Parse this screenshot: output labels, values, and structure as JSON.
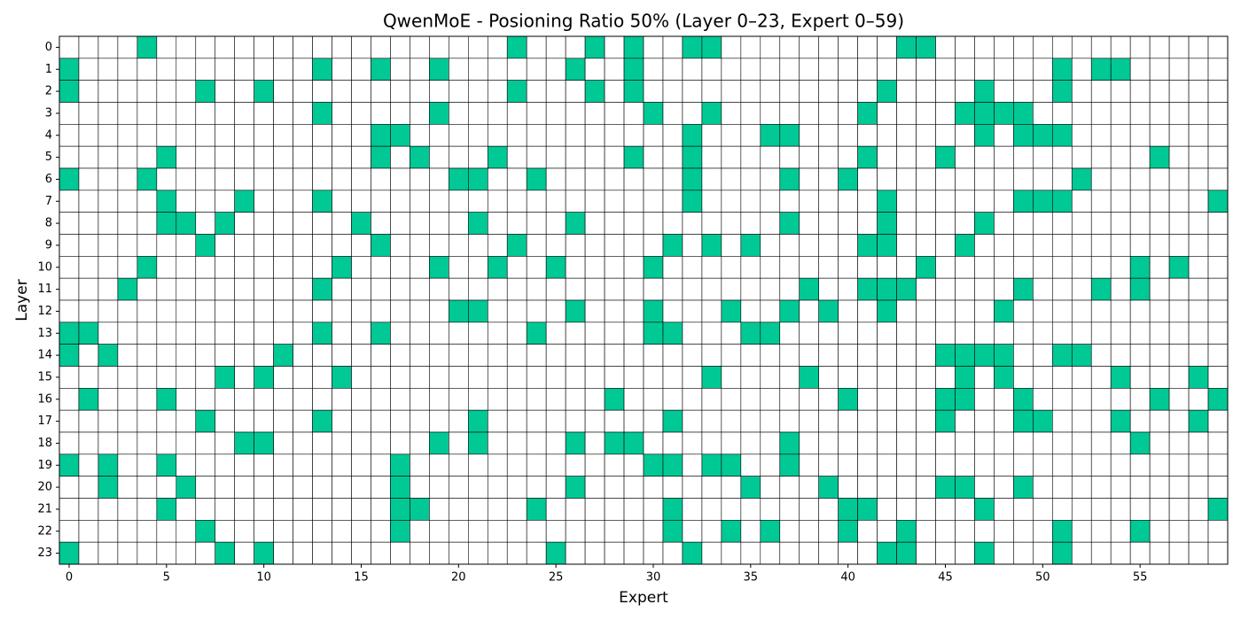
{
  "chart_data": {
    "type": "heatmap",
    "title": "QwenMoE - Posioning Ratio 50% (Layer 0–23, Expert 0–59)",
    "x_label": "Expert",
    "y_label": "Layer",
    "xlim": [
      -0.5,
      59.5
    ],
    "xticks": [
      0,
      5,
      10,
      15,
      20,
      25,
      30,
      35,
      40,
      45,
      50,
      55
    ],
    "ylim": [
      -0.5,
      23.5
    ],
    "y_inverted": true,
    "yticks": [
      0,
      1,
      2,
      3,
      4,
      5,
      6,
      7,
      8,
      9,
      10,
      11,
      12,
      13,
      14,
      15,
      16,
      17,
      18,
      19,
      20,
      21,
      22,
      23
    ],
    "colors": [
      "#ffffff",
      "#00c995"
    ],
    "values": [
      [
        0,
        0,
        0,
        0,
        1,
        0,
        0,
        0,
        0,
        0,
        0,
        0,
        0,
        0,
        0,
        0,
        0,
        0,
        0,
        0,
        0,
        0,
        0,
        1,
        0,
        0,
        0,
        1,
        0,
        1,
        0,
        0,
        1,
        1,
        0,
        0,
        0,
        0,
        0,
        0,
        0,
        0,
        0,
        1,
        1,
        0,
        0,
        0,
        0,
        0,
        0,
        0,
        0,
        0,
        0,
        0,
        0,
        0,
        0,
        0
      ],
      [
        1,
        0,
        0,
        0,
        0,
        0,
        0,
        0,
        0,
        0,
        0,
        0,
        0,
        1,
        0,
        0,
        1,
        0,
        0,
        1,
        0,
        0,
        0,
        0,
        0,
        0,
        1,
        0,
        0,
        1,
        0,
        0,
        0,
        0,
        0,
        0,
        0,
        0,
        0,
        0,
        0,
        0,
        0,
        0,
        0,
        0,
        0,
        0,
        0,
        0,
        0,
        1,
        0,
        1,
        1,
        0,
        0,
        0,
        0,
        0
      ],
      [
        1,
        0,
        0,
        0,
        0,
        0,
        0,
        1,
        0,
        0,
        1,
        0,
        0,
        0,
        0,
        0,
        0,
        0,
        0,
        0,
        0,
        0,
        0,
        1,
        0,
        0,
        0,
        1,
        0,
        1,
        0,
        0,
        0,
        0,
        0,
        0,
        0,
        0,
        0,
        0,
        0,
        0,
        1,
        0,
        0,
        0,
        0,
        1,
        0,
        0,
        0,
        1,
        0,
        0,
        0,
        0,
        0,
        0,
        0,
        0
      ],
      [
        0,
        0,
        0,
        0,
        0,
        0,
        0,
        0,
        0,
        0,
        0,
        0,
        0,
        1,
        0,
        0,
        0,
        0,
        0,
        1,
        0,
        0,
        0,
        0,
        0,
        0,
        0,
        0,
        0,
        0,
        1,
        0,
        0,
        1,
        0,
        0,
        0,
        0,
        0,
        0,
        0,
        1,
        0,
        0,
        0,
        0,
        1,
        1,
        1,
        1,
        0,
        0,
        0,
        0,
        0,
        0,
        0,
        0,
        0,
        0
      ],
      [
        0,
        0,
        0,
        0,
        0,
        0,
        0,
        0,
        0,
        0,
        0,
        0,
        0,
        0,
        0,
        0,
        1,
        1,
        0,
        0,
        0,
        0,
        0,
        0,
        0,
        0,
        0,
        0,
        0,
        0,
        0,
        0,
        1,
        0,
        0,
        0,
        1,
        1,
        0,
        0,
        0,
        0,
        0,
        0,
        0,
        0,
        0,
        1,
        0,
        1,
        1,
        1,
        0,
        0,
        0,
        0,
        0,
        0,
        0,
        0
      ],
      [
        0,
        0,
        0,
        0,
        0,
        1,
        0,
        0,
        0,
        0,
        0,
        0,
        0,
        0,
        0,
        0,
        1,
        0,
        1,
        0,
        0,
        0,
        1,
        0,
        0,
        0,
        0,
        0,
        0,
        1,
        0,
        0,
        1,
        0,
        0,
        0,
        0,
        0,
        0,
        0,
        0,
        1,
        0,
        0,
        0,
        1,
        0,
        0,
        0,
        0,
        0,
        0,
        0,
        0,
        0,
        0,
        1,
        0,
        0,
        0
      ],
      [
        1,
        0,
        0,
        0,
        1,
        0,
        0,
        0,
        0,
        0,
        0,
        0,
        0,
        0,
        0,
        0,
        0,
        0,
        0,
        0,
        1,
        1,
        0,
        0,
        1,
        0,
        0,
        0,
        0,
        0,
        0,
        0,
        1,
        0,
        0,
        0,
        0,
        1,
        0,
        0,
        1,
        0,
        0,
        0,
        0,
        0,
        0,
        0,
        0,
        0,
        0,
        0,
        1,
        0,
        0,
        0,
        0,
        0,
        0,
        0
      ],
      [
        0,
        0,
        0,
        0,
        0,
        1,
        0,
        0,
        0,
        1,
        0,
        0,
        0,
        1,
        0,
        0,
        0,
        0,
        0,
        0,
        0,
        0,
        0,
        0,
        0,
        0,
        0,
        0,
        0,
        0,
        0,
        0,
        1,
        0,
        0,
        0,
        0,
        0,
        0,
        0,
        0,
        0,
        1,
        0,
        0,
        0,
        0,
        0,
        0,
        1,
        1,
        1,
        0,
        0,
        0,
        0,
        0,
        0,
        0,
        1
      ],
      [
        0,
        0,
        0,
        0,
        0,
        1,
        1,
        0,
        1,
        0,
        0,
        0,
        0,
        0,
        0,
        1,
        0,
        0,
        0,
        0,
        0,
        1,
        0,
        0,
        0,
        0,
        1,
        0,
        0,
        0,
        0,
        0,
        0,
        0,
        0,
        0,
        0,
        1,
        0,
        0,
        0,
        0,
        1,
        0,
        0,
        0,
        0,
        1,
        0,
        0,
        0,
        0,
        0,
        0,
        0,
        0,
        0,
        0,
        0,
        0
      ],
      [
        0,
        0,
        0,
        0,
        0,
        0,
        0,
        1,
        0,
        0,
        0,
        0,
        0,
        0,
        0,
        0,
        1,
        0,
        0,
        0,
        0,
        0,
        0,
        1,
        0,
        0,
        0,
        0,
        0,
        0,
        0,
        1,
        0,
        1,
        0,
        1,
        0,
        0,
        0,
        0,
        0,
        1,
        1,
        0,
        0,
        0,
        1,
        0,
        0,
        0,
        0,
        0,
        0,
        0,
        0,
        0,
        0,
        0,
        0,
        0
      ],
      [
        0,
        0,
        0,
        0,
        1,
        0,
        0,
        0,
        0,
        0,
        0,
        0,
        0,
        0,
        1,
        0,
        0,
        0,
        0,
        1,
        0,
        0,
        1,
        0,
        0,
        1,
        0,
        0,
        0,
        0,
        1,
        0,
        0,
        0,
        0,
        0,
        0,
        0,
        0,
        0,
        0,
        0,
        0,
        0,
        1,
        0,
        0,
        0,
        0,
        0,
        0,
        0,
        0,
        0,
        0,
        1,
        0,
        1,
        0,
        0
      ],
      [
        0,
        0,
        0,
        1,
        0,
        0,
        0,
        0,
        0,
        0,
        0,
        0,
        0,
        1,
        0,
        0,
        0,
        0,
        0,
        0,
        0,
        0,
        0,
        0,
        0,
        0,
        0,
        0,
        0,
        0,
        0,
        0,
        0,
        0,
        0,
        0,
        0,
        0,
        1,
        0,
        0,
        1,
        1,
        1,
        0,
        0,
        0,
        0,
        0,
        1,
        0,
        0,
        0,
        1,
        0,
        1,
        0,
        0,
        0,
        0
      ],
      [
        0,
        0,
        0,
        0,
        0,
        0,
        0,
        0,
        0,
        0,
        0,
        0,
        0,
        0,
        0,
        0,
        0,
        0,
        0,
        0,
        1,
        1,
        0,
        0,
        0,
        0,
        1,
        0,
        0,
        0,
        1,
        0,
        0,
        0,
        1,
        0,
        0,
        1,
        0,
        1,
        0,
        0,
        1,
        0,
        0,
        0,
        0,
        0,
        1,
        0,
        0,
        0,
        0,
        0,
        0,
        0,
        0,
        0,
        0,
        0
      ],
      [
        1,
        1,
        0,
        0,
        0,
        0,
        0,
        0,
        0,
        0,
        0,
        0,
        0,
        1,
        0,
        0,
        1,
        0,
        0,
        0,
        0,
        0,
        0,
        0,
        1,
        0,
        0,
        0,
        0,
        0,
        1,
        1,
        0,
        0,
        0,
        1,
        1,
        0,
        0,
        0,
        0,
        0,
        0,
        0,
        0,
        0,
        0,
        0,
        0,
        0,
        0,
        0,
        0,
        0,
        0,
        0,
        0,
        0,
        0,
        0
      ],
      [
        1,
        0,
        1,
        0,
        0,
        0,
        0,
        0,
        0,
        0,
        0,
        1,
        0,
        0,
        0,
        0,
        0,
        0,
        0,
        0,
        0,
        0,
        0,
        0,
        0,
        0,
        0,
        0,
        0,
        0,
        0,
        0,
        0,
        0,
        0,
        0,
        0,
        0,
        0,
        0,
        0,
        0,
        0,
        0,
        0,
        1,
        1,
        1,
        1,
        0,
        0,
        1,
        1,
        0,
        0,
        0,
        0,
        0,
        0,
        0
      ],
      [
        0,
        0,
        0,
        0,
        0,
        0,
        0,
        0,
        1,
        0,
        1,
        0,
        0,
        0,
        1,
        0,
        0,
        0,
        0,
        0,
        0,
        0,
        0,
        0,
        0,
        0,
        0,
        0,
        0,
        0,
        0,
        0,
        0,
        1,
        0,
        0,
        0,
        0,
        1,
        0,
        0,
        0,
        0,
        0,
        0,
        0,
        1,
        0,
        1,
        0,
        0,
        0,
        0,
        0,
        1,
        0,
        0,
        0,
        1,
        0
      ],
      [
        0,
        1,
        0,
        0,
        0,
        1,
        0,
        0,
        0,
        0,
        0,
        0,
        0,
        0,
        0,
        0,
        0,
        0,
        0,
        0,
        0,
        0,
        0,
        0,
        0,
        0,
        0,
        0,
        1,
        0,
        0,
        0,
        0,
        0,
        0,
        0,
        0,
        0,
        0,
        0,
        1,
        0,
        0,
        0,
        0,
        1,
        1,
        0,
        0,
        1,
        0,
        0,
        0,
        0,
        0,
        0,
        1,
        0,
        0,
        1
      ],
      [
        0,
        0,
        0,
        0,
        0,
        0,
        0,
        1,
        0,
        0,
        0,
        0,
        0,
        1,
        0,
        0,
        0,
        0,
        0,
        0,
        0,
        1,
        0,
        0,
        0,
        0,
        0,
        0,
        0,
        0,
        0,
        1,
        0,
        0,
        0,
        0,
        0,
        0,
        0,
        0,
        0,
        0,
        0,
        0,
        0,
        1,
        0,
        0,
        0,
        1,
        1,
        0,
        0,
        0,
        1,
        0,
        0,
        0,
        1,
        0
      ],
      [
        0,
        0,
        0,
        0,
        0,
        0,
        0,
        0,
        0,
        1,
        1,
        0,
        0,
        0,
        0,
        0,
        0,
        0,
        0,
        1,
        0,
        1,
        0,
        0,
        0,
        0,
        1,
        0,
        1,
        1,
        0,
        0,
        0,
        0,
        0,
        0,
        0,
        1,
        0,
        0,
        0,
        0,
        0,
        0,
        0,
        0,
        0,
        0,
        0,
        0,
        0,
        0,
        0,
        0,
        0,
        1,
        0,
        0,
        0,
        0
      ],
      [
        1,
        0,
        1,
        0,
        0,
        1,
        0,
        0,
        0,
        0,
        0,
        0,
        0,
        0,
        0,
        0,
        0,
        1,
        0,
        0,
        0,
        0,
        0,
        0,
        0,
        0,
        0,
        0,
        0,
        0,
        1,
        1,
        0,
        1,
        1,
        0,
        0,
        1,
        0,
        0,
        0,
        0,
        0,
        0,
        0,
        0,
        0,
        0,
        0,
        0,
        0,
        0,
        0,
        0,
        0,
        0,
        0,
        0,
        0,
        0
      ],
      [
        0,
        0,
        1,
        0,
        0,
        0,
        1,
        0,
        0,
        0,
        0,
        0,
        0,
        0,
        0,
        0,
        0,
        1,
        0,
        0,
        0,
        0,
        0,
        0,
        0,
        0,
        1,
        0,
        0,
        0,
        0,
        0,
        0,
        0,
        0,
        1,
        0,
        0,
        0,
        1,
        0,
        0,
        0,
        0,
        0,
        1,
        1,
        0,
        0,
        1,
        0,
        0,
        0,
        0,
        0,
        0,
        0,
        0,
        0,
        0
      ],
      [
        0,
        0,
        0,
        0,
        0,
        1,
        0,
        0,
        0,
        0,
        0,
        0,
        0,
        0,
        0,
        0,
        0,
        1,
        1,
        0,
        0,
        0,
        0,
        0,
        1,
        0,
        0,
        0,
        0,
        0,
        0,
        1,
        0,
        0,
        0,
        0,
        0,
        0,
        0,
        0,
        1,
        1,
        0,
        0,
        0,
        0,
        0,
        1,
        0,
        0,
        0,
        0,
        0,
        0,
        0,
        0,
        0,
        0,
        0,
        1
      ],
      [
        0,
        0,
        0,
        0,
        0,
        0,
        0,
        1,
        0,
        0,
        0,
        0,
        0,
        0,
        0,
        0,
        0,
        1,
        0,
        0,
        0,
        0,
        0,
        0,
        0,
        0,
        0,
        0,
        0,
        0,
        0,
        1,
        0,
        0,
        1,
        0,
        1,
        0,
        0,
        0,
        1,
        0,
        0,
        1,
        0,
        0,
        0,
        0,
        0,
        0,
        0,
        1,
        0,
        0,
        0,
        1,
        0,
        0,
        0,
        0
      ],
      [
        1,
        0,
        0,
        0,
        0,
        0,
        0,
        0,
        1,
        0,
        1,
        0,
        0,
        0,
        0,
        0,
        0,
        0,
        0,
        0,
        0,
        0,
        0,
        0,
        0,
        1,
        0,
        0,
        0,
        0,
        0,
        0,
        1,
        0,
        0,
        0,
        0,
        0,
        0,
        0,
        0,
        0,
        1,
        1,
        0,
        0,
        0,
        1,
        0,
        0,
        0,
        1,
        0,
        0,
        0,
        0,
        0,
        0,
        0,
        0
      ]
    ]
  }
}
